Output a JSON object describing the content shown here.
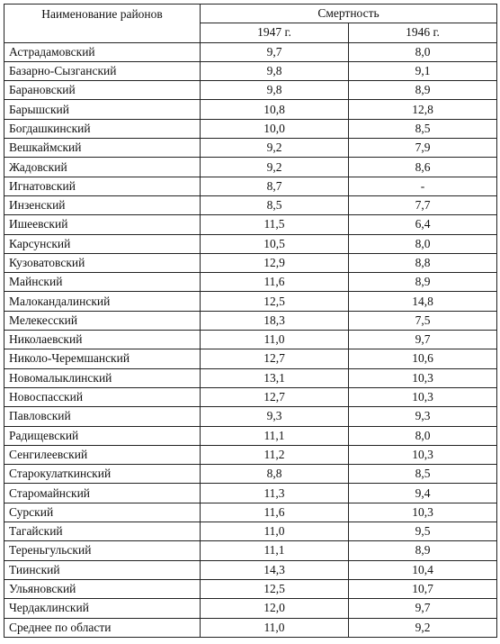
{
  "table": {
    "header": {
      "name_col": "Наименование районов",
      "group": "Смертность",
      "year1": "1947 г.",
      "year2": "1946 г."
    },
    "rows": [
      {
        "name": "Астрадамовский",
        "v1947": "9,7",
        "v1946": "8,0"
      },
      {
        "name": "Базарно-Сызганский",
        "v1947": "9,8",
        "v1946": "9,1"
      },
      {
        "name": "Барановский",
        "v1947": "9,8",
        "v1946": "8,9"
      },
      {
        "name": "Барышский",
        "v1947": "10,8",
        "v1946": "12,8"
      },
      {
        "name": "Богдашкинский",
        "v1947": "10,0",
        "v1946": "8,5"
      },
      {
        "name": "Вешкаймский",
        "v1947": "9,2",
        "v1946": "7,9"
      },
      {
        "name": "Жадовский",
        "v1947": "9,2",
        "v1946": "8,6"
      },
      {
        "name": "Игнатовский",
        "v1947": "8,7",
        "v1946": "-"
      },
      {
        "name": "Инзенский",
        "v1947": "8,5",
        "v1946": "7,7"
      },
      {
        "name": "Ишеевский",
        "v1947": "11,5",
        "v1946": "6,4"
      },
      {
        "name": "Карсунский",
        "v1947": "10,5",
        "v1946": "8,0"
      },
      {
        "name": "Кузоватовский",
        "v1947": "12,9",
        "v1946": "8,8"
      },
      {
        "name": "Майнский",
        "v1947": "11,6",
        "v1946": "8,9"
      },
      {
        "name": "Малокандалинский",
        "v1947": "12,5",
        "v1946": "14,8"
      },
      {
        "name": "Мелекесский",
        "v1947": "18,3",
        "v1946": "7,5"
      },
      {
        "name": "Николаевский",
        "v1947": "11,0",
        "v1946": "9,7"
      },
      {
        "name": "Николо-Черемшанский",
        "v1947": "12,7",
        "v1946": "10,6"
      },
      {
        "name": "Новомалыклинский",
        "v1947": "13,1",
        "v1946": "10,3"
      },
      {
        "name": "Новоспасский",
        "v1947": "12,7",
        "v1946": "10,3"
      },
      {
        "name": "Павловский",
        "v1947": "9,3",
        "v1946": "9,3"
      },
      {
        "name": "Радищевский",
        "v1947": "11,1",
        "v1946": "8,0"
      },
      {
        "name": "Сенгилеевский",
        "v1947": "11,2",
        "v1946": "10,3"
      },
      {
        "name": "Старокулаткинский",
        "v1947": "8,8",
        "v1946": "8,5"
      },
      {
        "name": "Старомайнский",
        "v1947": "11,3",
        "v1946": "9,4"
      },
      {
        "name": "Сурский",
        "v1947": "11,6",
        "v1946": "10,3"
      },
      {
        "name": "Тагайский",
        "v1947": "11,0",
        "v1946": "9,5"
      },
      {
        "name": "Тереньгульский",
        "v1947": "11,1",
        "v1946": "8,9"
      },
      {
        "name": "Тиинский",
        "v1947": "14,3",
        "v1946": "10,4"
      },
      {
        "name": "Ульяновский",
        "v1947": "12,5",
        "v1946": "10,7"
      },
      {
        "name": "Чердаклинский",
        "v1947": "12,0",
        "v1946": "9,7"
      },
      {
        "name": "Среднее по области",
        "v1947": "11,0",
        "v1946": "9,2"
      }
    ]
  }
}
